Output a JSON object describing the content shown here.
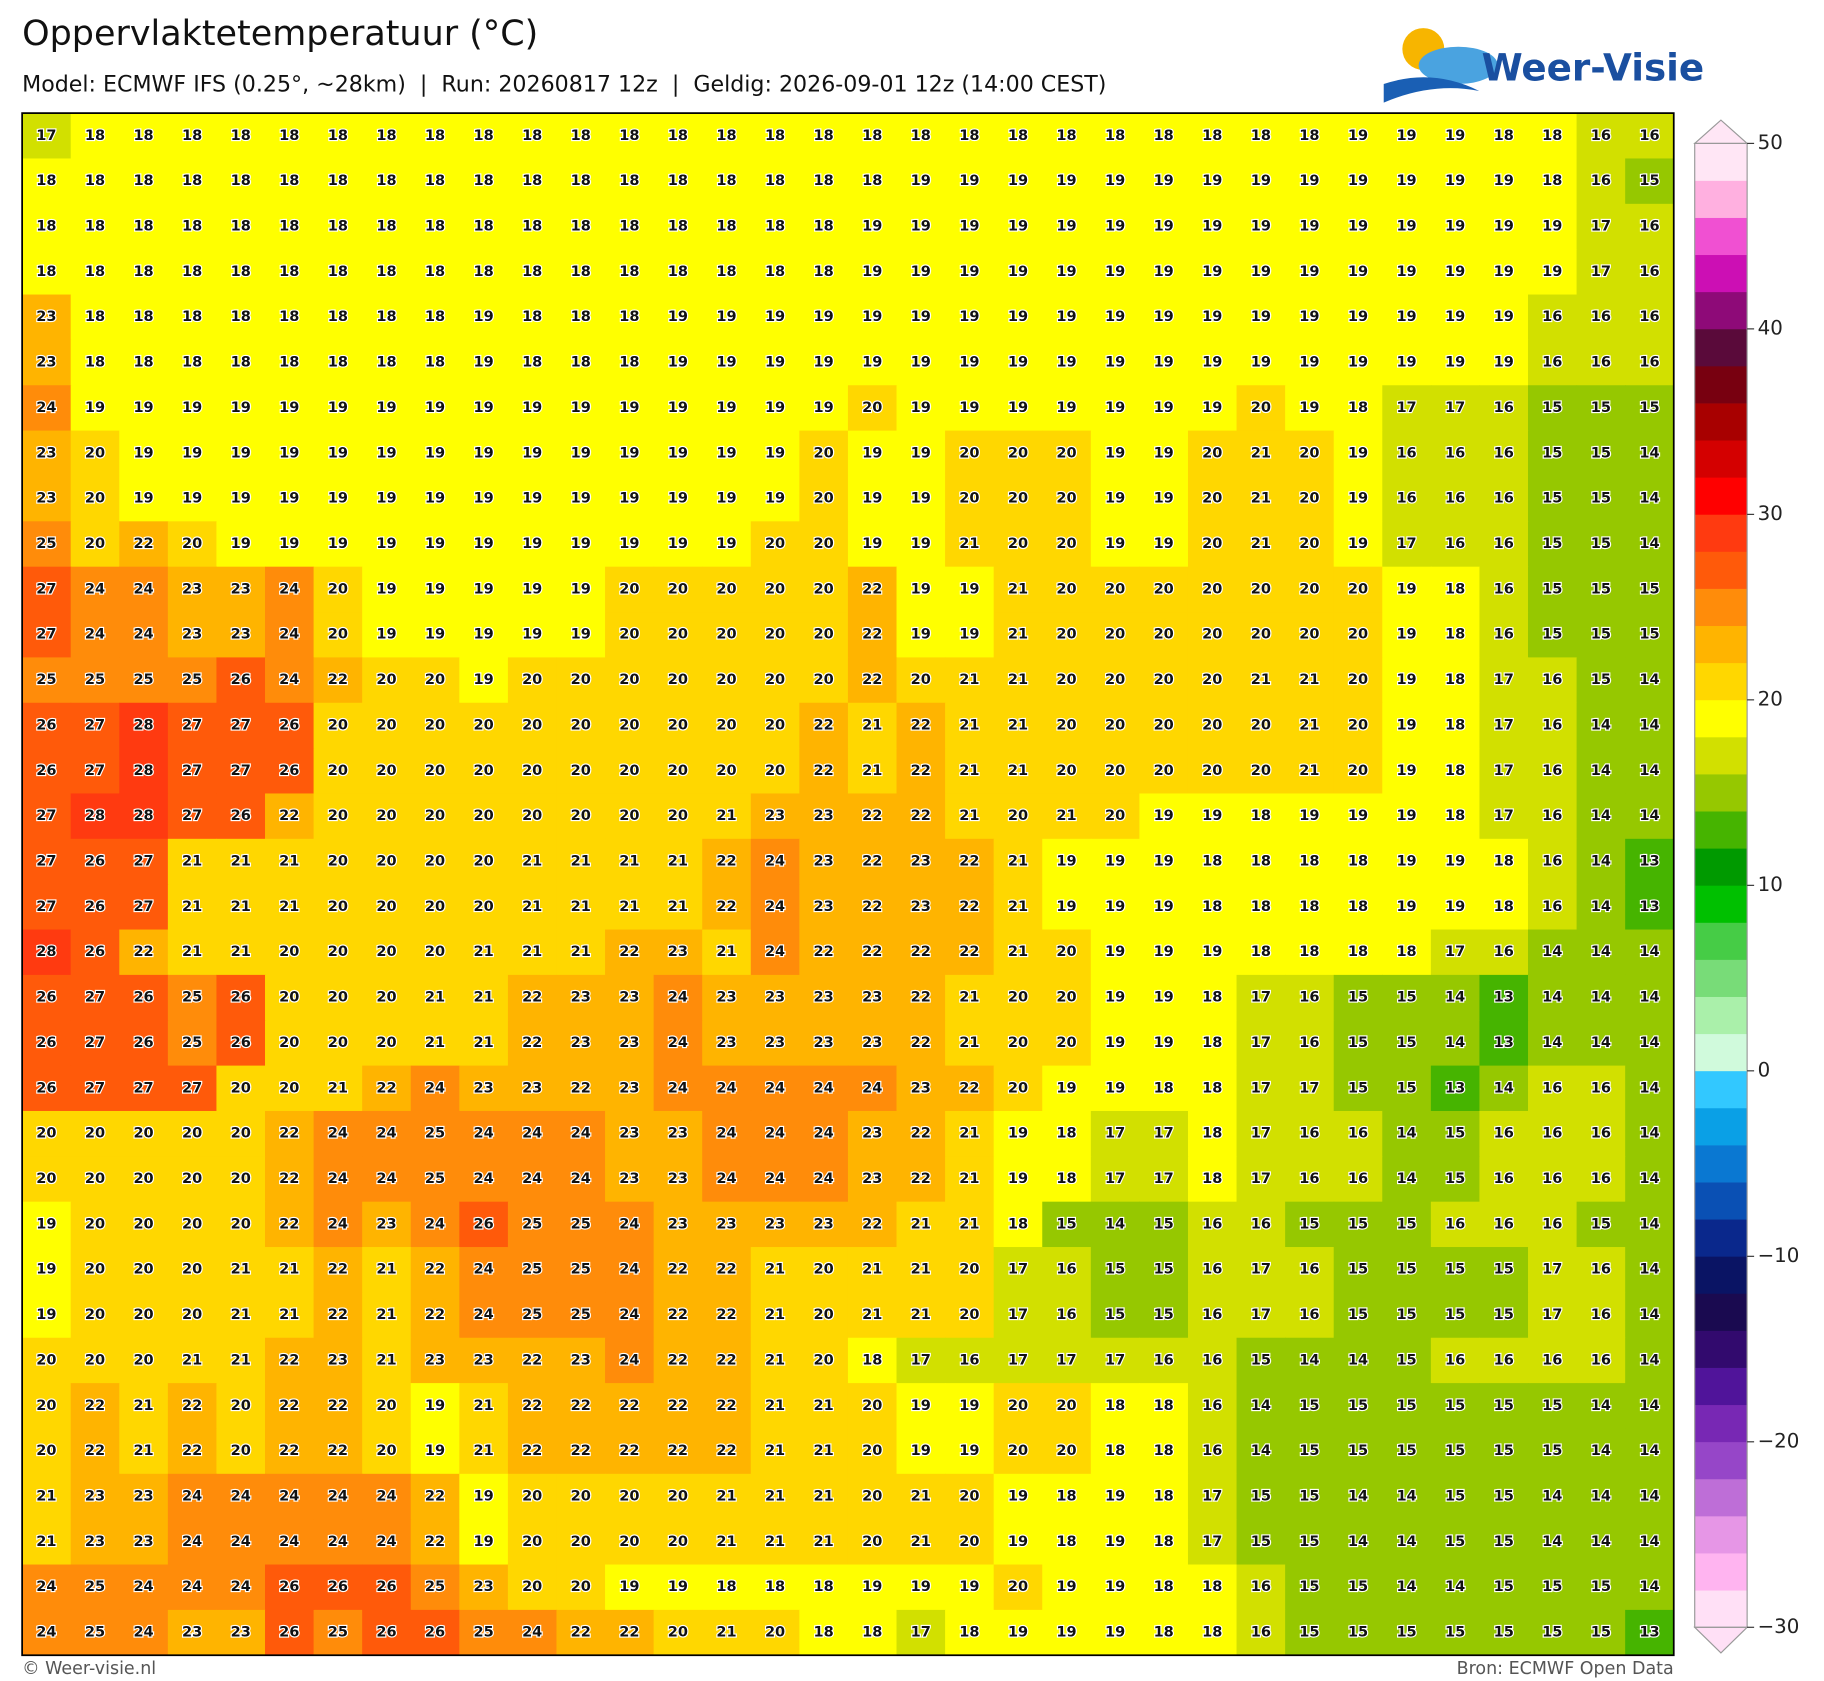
{
  "header": {
    "title": "Oppervlaktetemperatuur (°C)",
    "subtitle": "Model: ECMWF IFS (0.25°, ~28km)  |  Run: 20260817 12z  |  Geldig: 2026-09-01 12z (14:00 CEST)",
    "logo": "Weer-Visie"
  },
  "map": {
    "rows": [
      [
        17,
        18,
        18,
        18,
        18,
        18,
        18,
        18,
        18,
        18,
        18,
        18,
        18,
        18,
        18,
        18,
        18,
        18,
        18,
        18,
        18,
        18,
        18,
        18,
        18,
        18,
        18,
        19,
        19,
        19,
        18,
        18,
        16,
        16
      ],
      [
        18,
        18,
        18,
        18,
        18,
        18,
        18,
        18,
        18,
        18,
        18,
        18,
        18,
        18,
        18,
        18,
        18,
        18,
        19,
        19,
        19,
        19,
        19,
        19,
        19,
        19,
        19,
        19,
        19,
        19,
        19,
        18,
        16,
        15
      ],
      [
        18,
        18,
        18,
        18,
        18,
        18,
        18,
        18,
        18,
        18,
        18,
        18,
        18,
        18,
        18,
        18,
        18,
        19,
        19,
        19,
        19,
        19,
        19,
        19,
        19,
        19,
        19,
        19,
        19,
        19,
        19,
        19,
        17,
        16
      ],
      [
        18,
        18,
        18,
        18,
        18,
        18,
        18,
        18,
        18,
        18,
        18,
        18,
        18,
        18,
        18,
        18,
        18,
        19,
        19,
        19,
        19,
        19,
        19,
        19,
        19,
        19,
        19,
        19,
        19,
        19,
        19,
        19,
        17,
        16
      ],
      [
        23,
        18,
        18,
        18,
        18,
        18,
        18,
        18,
        18,
        19,
        18,
        18,
        18,
        19,
        19,
        19,
        19,
        19,
        19,
        19,
        19,
        19,
        19,
        19,
        19,
        19,
        19,
        19,
        19,
        19,
        19,
        16,
        16,
        16
      ],
      [
        23,
        18,
        18,
        18,
        18,
        18,
        18,
        18,
        18,
        19,
        18,
        18,
        18,
        19,
        19,
        19,
        19,
        19,
        19,
        19,
        19,
        19,
        19,
        19,
        19,
        19,
        19,
        19,
        19,
        19,
        19,
        16,
        16,
        16
      ],
      [
        24,
        19,
        19,
        19,
        19,
        19,
        19,
        19,
        19,
        19,
        19,
        19,
        19,
        19,
        19,
        19,
        19,
        20,
        19,
        19,
        19,
        19,
        19,
        19,
        19,
        20,
        19,
        18,
        17,
        17,
        16,
        15,
        15,
        15
      ],
      [
        23,
        20,
        19,
        19,
        19,
        19,
        19,
        19,
        19,
        19,
        19,
        19,
        19,
        19,
        19,
        19,
        20,
        19,
        19,
        20,
        20,
        20,
        19,
        19,
        20,
        21,
        20,
        19,
        16,
        16,
        16,
        15,
        15,
        14
      ],
      [
        23,
        20,
        19,
        19,
        19,
        19,
        19,
        19,
        19,
        19,
        19,
        19,
        19,
        19,
        19,
        19,
        20,
        19,
        19,
        20,
        20,
        20,
        19,
        19,
        20,
        21,
        20,
        19,
        16,
        16,
        16,
        15,
        15,
        14
      ],
      [
        25,
        20,
        22,
        20,
        19,
        19,
        19,
        19,
        19,
        19,
        19,
        19,
        19,
        19,
        19,
        20,
        20,
        19,
        19,
        21,
        20,
        20,
        19,
        19,
        20,
        21,
        20,
        19,
        17,
        16,
        16,
        15,
        15,
        14
      ],
      [
        27,
        24,
        24,
        23,
        23,
        24,
        20,
        19,
        19,
        19,
        19,
        19,
        20,
        20,
        20,
        20,
        20,
        22,
        19,
        19,
        21,
        20,
        20,
        20,
        20,
        20,
        20,
        20,
        19,
        18,
        16,
        15,
        15,
        15
      ],
      [
        27,
        24,
        24,
        23,
        23,
        24,
        20,
        19,
        19,
        19,
        19,
        19,
        20,
        20,
        20,
        20,
        20,
        22,
        19,
        19,
        21,
        20,
        20,
        20,
        20,
        20,
        20,
        20,
        19,
        18,
        16,
        15,
        15,
        15
      ],
      [
        25,
        25,
        25,
        25,
        26,
        24,
        22,
        20,
        20,
        19,
        20,
        20,
        20,
        20,
        20,
        20,
        20,
        22,
        20,
        21,
        21,
        20,
        20,
        20,
        20,
        21,
        21,
        20,
        19,
        18,
        17,
        16,
        15,
        14
      ],
      [
        26,
        27,
        28,
        27,
        27,
        26,
        20,
        20,
        20,
        20,
        20,
        20,
        20,
        20,
        20,
        20,
        22,
        21,
        22,
        21,
        21,
        20,
        20,
        20,
        20,
        20,
        21,
        20,
        19,
        18,
        17,
        16,
        14,
        14
      ],
      [
        26,
        27,
        28,
        27,
        27,
        26,
        20,
        20,
        20,
        20,
        20,
        20,
        20,
        20,
        20,
        20,
        22,
        21,
        22,
        21,
        21,
        20,
        20,
        20,
        20,
        20,
        21,
        20,
        19,
        18,
        17,
        16,
        14,
        14
      ],
      [
        27,
        28,
        28,
        27,
        26,
        22,
        20,
        20,
        20,
        20,
        20,
        20,
        20,
        20,
        21,
        23,
        23,
        22,
        22,
        21,
        20,
        21,
        20,
        19,
        19,
        18,
        19,
        19,
        19,
        18,
        17,
        16,
        14,
        14
      ],
      [
        27,
        26,
        27,
        21,
        21,
        21,
        20,
        20,
        20,
        20,
        21,
        21,
        21,
        21,
        22,
        24,
        23,
        22,
        23,
        22,
        21,
        19,
        19,
        19,
        18,
        18,
        18,
        18,
        19,
        19,
        18,
        16,
        14,
        13
      ],
      [
        27,
        26,
        27,
        21,
        21,
        21,
        20,
        20,
        20,
        20,
        21,
        21,
        21,
        21,
        22,
        24,
        23,
        22,
        23,
        22,
        21,
        19,
        19,
        19,
        18,
        18,
        18,
        18,
        19,
        19,
        18,
        16,
        14,
        13
      ],
      [
        28,
        26,
        22,
        21,
        21,
        20,
        20,
        20,
        20,
        21,
        21,
        21,
        22,
        23,
        21,
        24,
        22,
        22,
        22,
        22,
        21,
        20,
        19,
        19,
        19,
        18,
        18,
        18,
        18,
        17,
        16,
        14,
        14,
        14
      ],
      [
        26,
        27,
        26,
        25,
        26,
        20,
        20,
        20,
        21,
        21,
        22,
        23,
        23,
        24,
        23,
        23,
        23,
        23,
        22,
        21,
        20,
        20,
        19,
        19,
        18,
        17,
        16,
        15,
        15,
        14,
        13,
        14,
        14,
        14
      ],
      [
        26,
        27,
        26,
        25,
        26,
        20,
        20,
        20,
        21,
        21,
        22,
        23,
        23,
        24,
        23,
        23,
        23,
        23,
        22,
        21,
        20,
        20,
        19,
        19,
        18,
        17,
        16,
        15,
        15,
        14,
        13,
        14,
        14,
        14
      ],
      [
        26,
        27,
        27,
        27,
        20,
        20,
        21,
        22,
        24,
        23,
        23,
        22,
        23,
        24,
        24,
        24,
        24,
        24,
        23,
        22,
        20,
        19,
        19,
        18,
        18,
        17,
        17,
        15,
        15,
        13,
        14,
        16,
        16,
        14
      ],
      [
        20,
        20,
        20,
        20,
        20,
        22,
        24,
        24,
        25,
        24,
        24,
        24,
        23,
        23,
        24,
        24,
        24,
        23,
        22,
        21,
        19,
        18,
        17,
        17,
        18,
        17,
        16,
        16,
        14,
        15,
        16,
        16,
        16,
        14
      ],
      [
        20,
        20,
        20,
        20,
        20,
        22,
        24,
        24,
        25,
        24,
        24,
        24,
        23,
        23,
        24,
        24,
        24,
        23,
        22,
        21,
        19,
        18,
        17,
        17,
        18,
        17,
        16,
        16,
        14,
        15,
        16,
        16,
        16,
        14
      ],
      [
        19,
        20,
        20,
        20,
        20,
        22,
        24,
        23,
        24,
        26,
        25,
        25,
        24,
        23,
        23,
        23,
        23,
        22,
        21,
        21,
        18,
        15,
        14,
        15,
        16,
        16,
        15,
        15,
        15,
        16,
        16,
        16,
        15,
        14
      ],
      [
        19,
        20,
        20,
        20,
        21,
        21,
        22,
        21,
        22,
        24,
        25,
        25,
        24,
        22,
        22,
        21,
        20,
        21,
        21,
        20,
        17,
        16,
        15,
        15,
        16,
        17,
        16,
        15,
        15,
        15,
        15,
        17,
        16,
        14
      ],
      [
        19,
        20,
        20,
        20,
        21,
        21,
        22,
        21,
        22,
        24,
        25,
        25,
        24,
        22,
        22,
        21,
        20,
        21,
        21,
        20,
        17,
        16,
        15,
        15,
        16,
        17,
        16,
        15,
        15,
        15,
        15,
        17,
        16,
        14
      ],
      [
        20,
        20,
        20,
        21,
        21,
        22,
        23,
        21,
        23,
        23,
        22,
        23,
        24,
        22,
        22,
        21,
        20,
        18,
        17,
        16,
        17,
        17,
        17,
        16,
        16,
        15,
        14,
        14,
        15,
        16,
        16,
        16,
        16,
        14
      ],
      [
        20,
        22,
        21,
        22,
        20,
        22,
        22,
        20,
        19,
        21,
        22,
        22,
        22,
        22,
        22,
        21,
        21,
        20,
        19,
        19,
        20,
        20,
        18,
        18,
        16,
        14,
        15,
        15,
        15,
        15,
        15,
        15,
        14,
        14
      ],
      [
        20,
        22,
        21,
        22,
        20,
        22,
        22,
        20,
        19,
        21,
        22,
        22,
        22,
        22,
        22,
        21,
        21,
        20,
        19,
        19,
        20,
        20,
        18,
        18,
        16,
        14,
        15,
        15,
        15,
        15,
        15,
        15,
        14,
        14
      ],
      [
        21,
        23,
        23,
        24,
        24,
        24,
        24,
        24,
        22,
        19,
        20,
        20,
        20,
        20,
        21,
        21,
        21,
        20,
        21,
        20,
        19,
        18,
        19,
        18,
        17,
        15,
        15,
        14,
        14,
        15,
        15,
        14,
        14,
        14
      ],
      [
        21,
        23,
        23,
        24,
        24,
        24,
        24,
        24,
        22,
        19,
        20,
        20,
        20,
        20,
        21,
        21,
        21,
        20,
        21,
        20,
        19,
        18,
        19,
        18,
        17,
        15,
        15,
        14,
        14,
        15,
        15,
        14,
        14,
        14
      ],
      [
        24,
        25,
        24,
        24,
        24,
        26,
        26,
        26,
        25,
        23,
        20,
        20,
        19,
        19,
        18,
        18,
        18,
        19,
        19,
        19,
        20,
        19,
        19,
        18,
        18,
        16,
        15,
        15,
        14,
        14,
        15,
        15,
        15,
        14
      ],
      [
        24,
        25,
        24,
        23,
        23,
        26,
        25,
        26,
        26,
        25,
        24,
        22,
        22,
        20,
        21,
        20,
        18,
        18,
        17,
        18,
        19,
        19,
        19,
        18,
        18,
        16,
        15,
        15,
        15,
        15,
        15,
        15,
        15,
        13
      ]
    ]
  },
  "colorbar": {
    "lim": [
      -30,
      50
    ],
    "ticks": [
      50,
      40,
      30,
      20,
      10,
      0,
      {
        "value": -10,
        "label": "−10"
      },
      {
        "value": -20,
        "label": "−20"
      },
      {
        "value": -30,
        "label": "−30"
      }
    ],
    "colors": [
      "#ffe0f6",
      "#ffb4f0",
      "#e696e6",
      "#be6ed7",
      "#9646c8",
      "#7828b4",
      "#50149a",
      "#320a6e",
      "#1a0a50",
      "#0a1464",
      "#0a288c",
      "#0a50b4",
      "#0a78d2",
      "#0aa0e6",
      "#32c8ff",
      "#d0fadc",
      "#aaf0aa",
      "#78dc78",
      "#46cc46",
      "#00c000",
      "#009a00",
      "#46b400",
      "#96c800",
      "#d2e000",
      "#ffff00",
      "#ffd700",
      "#ffb400",
      "#ff8c0a",
      "#ff5a0a",
      "#ff3a10",
      "#ff0000",
      "#d40000",
      "#a80000",
      "#780010",
      "#5a0a3a",
      "#8e0a78",
      "#cc0fb4",
      "#f050d2",
      "#ffb0e0",
      "#ffe6f5"
    ]
  },
  "footer": {
    "left": "© Weer-visie.nl",
    "right": "Bron: ECMWF Open Data"
  }
}
